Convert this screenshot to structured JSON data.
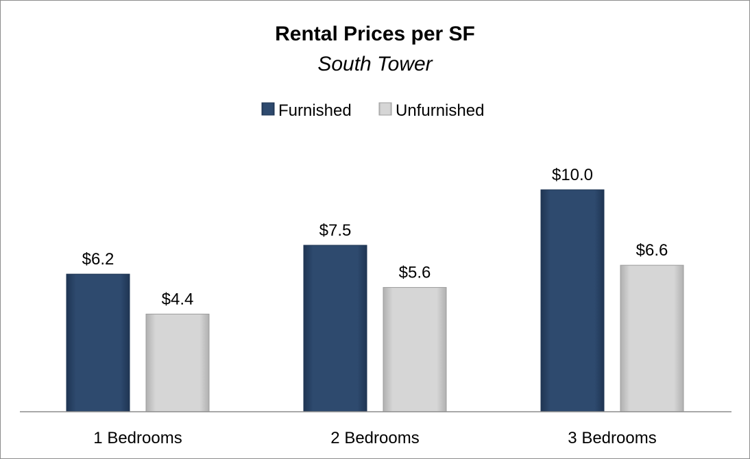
{
  "chart_data": {
    "type": "bar",
    "title": "Rental Prices per SF",
    "subtitle": "South Tower",
    "categories": [
      "1 Bedrooms",
      "2 Bedrooms",
      "3 Bedrooms"
    ],
    "series": [
      {
        "name": "Furnished",
        "values": [
          6.2,
          7.5,
          10.0
        ],
        "labels": [
          "$6.2",
          "$7.5",
          "$10.0"
        ],
        "color": "#2e4a6e"
      },
      {
        "name": "Unfurnished",
        "values": [
          4.4,
          5.6,
          6.6
        ],
        "labels": [
          "$4.4",
          "$5.6",
          "$6.6"
        ],
        "color": "#d3d3d3"
      }
    ],
    "xlabel": "",
    "ylabel": "",
    "ylim": [
      0,
      12
    ],
    "grid": false,
    "legend": "top-center"
  }
}
